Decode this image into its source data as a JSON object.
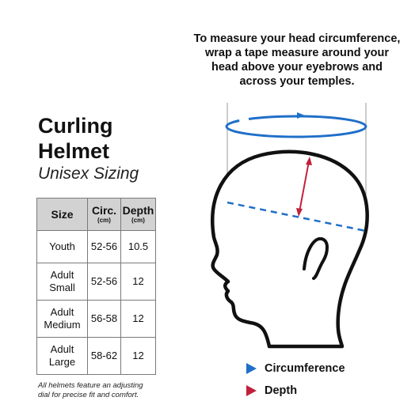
{
  "instructions": [
    "To measure your head circumference,",
    "wrap a tape measure around your",
    "head above your eyebrows and",
    "across your temples."
  ],
  "title_line1": "Curling",
  "title_line2": "Helmet",
  "subtitle": "Unisex Sizing",
  "table": {
    "headers": {
      "size": "Size",
      "circ": "Circ.",
      "circ_unit": "(cm)",
      "depth": "Depth",
      "depth_unit": "(cm)"
    },
    "rows": [
      {
        "size1": "Youth",
        "size2": "",
        "circ": "52-56",
        "depth": "10.5"
      },
      {
        "size1": "Adult",
        "size2": "Small",
        "circ": "52-56",
        "depth": "12"
      },
      {
        "size1": "Adult",
        "size2": "Medium",
        "circ": "56-58",
        "depth": "12"
      },
      {
        "size1": "Adult",
        "size2": "Large",
        "circ": "58-62",
        "depth": "12"
      }
    ]
  },
  "footnote": [
    "All helmets feature an adjusting",
    "dial for precise fit and comfort."
  ],
  "legend": {
    "circumference": "Circumference",
    "depth": "Depth"
  },
  "colors": {
    "circumference": "#1f6fc9",
    "depth": "#c0203a",
    "header_bg": "#d2d2d2"
  }
}
